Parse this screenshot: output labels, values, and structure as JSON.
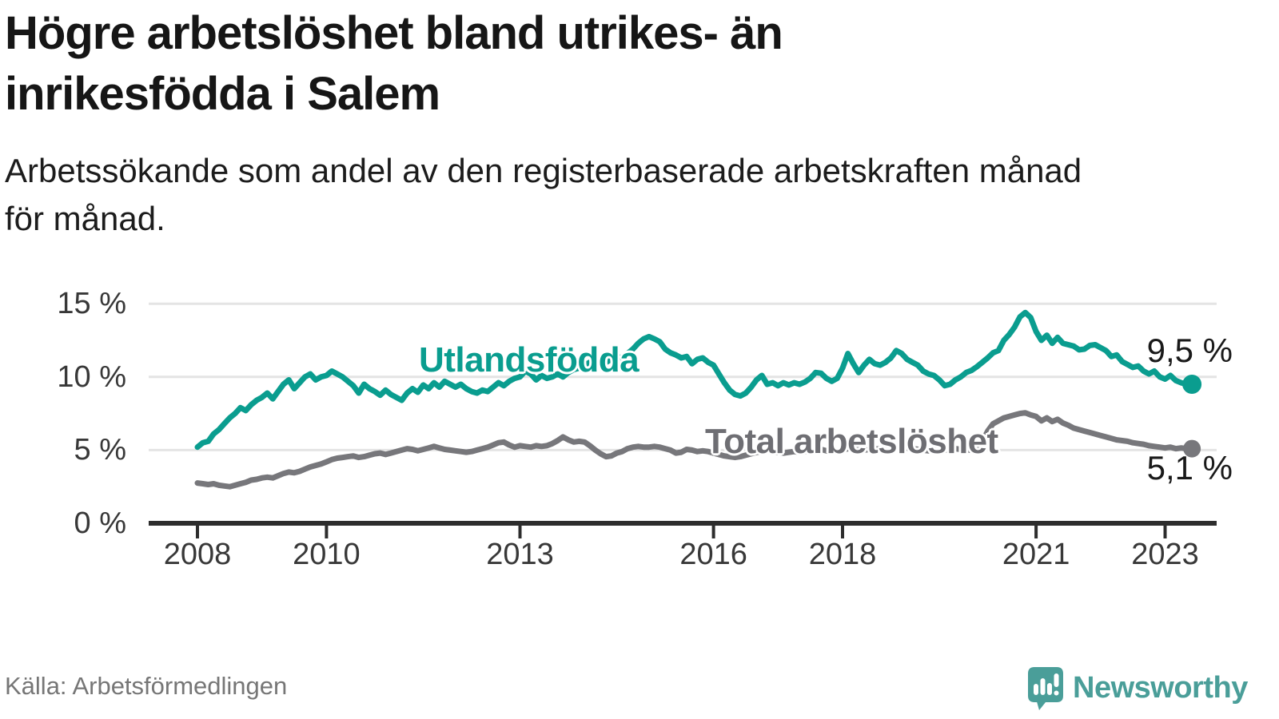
{
  "title": {
    "line1": "Högre arbetslöshet bland utrikes- än",
    "line2": "inrikesfödda i Salem"
  },
  "subtitle": {
    "line1": "Arbetssökande som andel av den registerbaserade arbetskraften månad",
    "line2": "för månad."
  },
  "source": "Källa: Arbetsförmedlingen",
  "logo": {
    "text": "Newsworthy"
  },
  "colors": {
    "foreign_line": "#0a9d8f",
    "total_line": "#77777b",
    "axis": "#2d2d2d",
    "grid": "#e4e4e4",
    "logo_teal": "#4a9e99",
    "label_total": "#6e6e73",
    "text": "#161616",
    "muted": "#767676"
  },
  "chart_data": {
    "type": "line",
    "frequency": "monthly",
    "start_year": 2008,
    "end_point": "2023-06",
    "title": "Högre arbetslöshet bland utrikes- än inrikesfödda i Salem",
    "subtitle": "Arbetssökande som andel av den registerbaserade arbetskraften månad för månad.",
    "xlim": [
      2008,
      2023.5
    ],
    "ylim": [
      0,
      15.8
    ],
    "grid": "horizontal",
    "y_ticks": [
      {
        "value": 0,
        "label": "0 %"
      },
      {
        "value": 5,
        "label": "5 %"
      },
      {
        "value": 10,
        "label": "10 %"
      },
      {
        "value": 15,
        "label": "15 %"
      }
    ],
    "x_ticks": [
      {
        "year": 2008,
        "label": "2008"
      },
      {
        "year": 2010,
        "label": "2010"
      },
      {
        "year": 2013,
        "label": "2013"
      },
      {
        "year": 2016,
        "label": "2016"
      },
      {
        "year": 2018,
        "label": "2018"
      },
      {
        "year": 2021,
        "label": "2021"
      },
      {
        "year": 2023,
        "label": "2023"
      }
    ],
    "series": [
      {
        "name": "Utlandsfödda",
        "color": "#0a9d8f",
        "end_label": "9,5 %",
        "end_value": 9.5,
        "values": [
          5.2,
          5.5,
          5.6,
          6.1,
          6.4,
          6.8,
          7.2,
          7.5,
          7.9,
          7.7,
          8.1,
          8.4,
          8.6,
          8.9,
          8.5,
          9.0,
          9.5,
          9.8,
          9.2,
          9.6,
          10.0,
          10.2,
          9.8,
          10.0,
          10.1,
          10.4,
          10.2,
          10.0,
          9.7,
          9.4,
          8.9,
          9.5,
          9.2,
          9.0,
          8.75,
          9.1,
          8.8,
          8.6,
          8.4,
          8.9,
          9.2,
          8.95,
          9.45,
          9.2,
          9.6,
          9.3,
          9.7,
          9.5,
          9.3,
          9.5,
          9.2,
          9.0,
          8.9,
          9.1,
          9.0,
          9.3,
          9.6,
          9.4,
          9.7,
          9.9,
          10.0,
          10.4,
          10.2,
          9.8,
          10.1,
          9.9,
          10.0,
          10.2,
          10.0,
          10.3,
          10.5,
          10.6,
          10.8,
          11.0,
          10.9,
          11.1,
          11.0,
          11.2,
          11.4,
          11.3,
          11.6,
          11.9,
          12.3,
          12.6,
          12.75,
          12.6,
          12.4,
          11.9,
          11.65,
          11.5,
          11.3,
          11.4,
          10.9,
          11.2,
          11.3,
          11.0,
          10.8,
          10.2,
          9.6,
          9.1,
          8.8,
          8.7,
          8.9,
          9.3,
          9.8,
          10.1,
          9.5,
          9.6,
          9.4,
          9.6,
          9.45,
          9.6,
          9.5,
          9.65,
          9.9,
          10.3,
          10.25,
          9.9,
          9.7,
          9.9,
          10.6,
          11.6,
          10.9,
          10.3,
          10.8,
          11.2,
          10.9,
          10.8,
          11.0,
          11.3,
          11.8,
          11.6,
          11.2,
          11.0,
          10.8,
          10.4,
          10.2,
          10.1,
          9.8,
          9.4,
          9.5,
          9.8,
          10.0,
          10.3,
          10.45,
          10.7,
          11.0,
          11.3,
          11.65,
          11.8,
          12.5,
          12.9,
          13.4,
          14.1,
          14.4,
          14.05,
          13.1,
          12.5,
          12.85,
          12.3,
          12.7,
          12.3,
          12.2,
          12.1,
          11.85,
          11.9,
          12.15,
          12.2,
          12.0,
          11.8,
          11.4,
          11.5,
          11.05,
          10.85,
          10.65,
          10.75,
          10.4,
          10.2,
          10.4,
          10.0,
          9.85,
          10.1,
          9.75,
          9.6,
          9.5,
          9.5
        ]
      },
      {
        "name": "Total arbetslöshet",
        "color": "#77777b",
        "end_label": "5,1 %",
        "end_value": 5.1,
        "values": [
          2.75,
          2.7,
          2.65,
          2.7,
          2.6,
          2.55,
          2.5,
          2.6,
          2.7,
          2.8,
          2.95,
          3.0,
          3.1,
          3.15,
          3.1,
          3.25,
          3.4,
          3.5,
          3.45,
          3.55,
          3.7,
          3.85,
          3.95,
          4.05,
          4.2,
          4.35,
          4.45,
          4.5,
          4.55,
          4.6,
          4.5,
          4.55,
          4.65,
          4.75,
          4.8,
          4.7,
          4.8,
          4.9,
          5.0,
          5.1,
          5.05,
          4.95,
          5.05,
          5.15,
          5.25,
          5.15,
          5.05,
          5.0,
          4.95,
          4.9,
          4.85,
          4.9,
          5.0,
          5.1,
          5.2,
          5.35,
          5.5,
          5.55,
          5.35,
          5.2,
          5.3,
          5.25,
          5.2,
          5.3,
          5.25,
          5.3,
          5.45,
          5.65,
          5.9,
          5.7,
          5.55,
          5.6,
          5.55,
          5.3,
          5.0,
          4.75,
          4.55,
          4.6,
          4.8,
          4.9,
          5.1,
          5.2,
          5.25,
          5.2,
          5.2,
          5.25,
          5.2,
          5.1,
          5.0,
          4.8,
          4.85,
          5.05,
          5.0,
          4.9,
          4.95,
          4.9,
          4.8,
          4.7,
          4.6,
          4.55,
          4.5,
          4.55,
          4.65,
          4.75,
          4.85,
          4.9,
          4.95,
          4.9,
          4.85,
          4.8,
          4.85,
          4.9,
          4.85,
          4.9,
          5.0,
          5.1,
          5.05,
          4.95,
          4.9,
          4.95,
          5.0,
          5.1,
          5.15,
          5.05,
          5.0,
          5.05,
          5.1,
          5.05,
          5.1,
          5.2,
          5.25,
          5.2,
          5.15,
          5.1,
          5.05,
          5.0,
          4.95,
          5.0,
          5.05,
          5.0,
          5.05,
          5.1,
          5.05,
          5.0,
          5.0,
          5.1,
          5.6,
          6.3,
          6.8,
          7.0,
          7.2,
          7.3,
          7.4,
          7.5,
          7.55,
          7.4,
          7.3,
          7.0,
          7.2,
          6.95,
          7.1,
          6.85,
          6.7,
          6.5,
          6.4,
          6.3,
          6.2,
          6.1,
          6.0,
          5.9,
          5.8,
          5.7,
          5.65,
          5.6,
          5.5,
          5.45,
          5.4,
          5.3,
          5.25,
          5.2,
          5.15,
          5.2,
          5.1,
          5.15,
          5.1,
          5.1
        ]
      }
    ]
  }
}
